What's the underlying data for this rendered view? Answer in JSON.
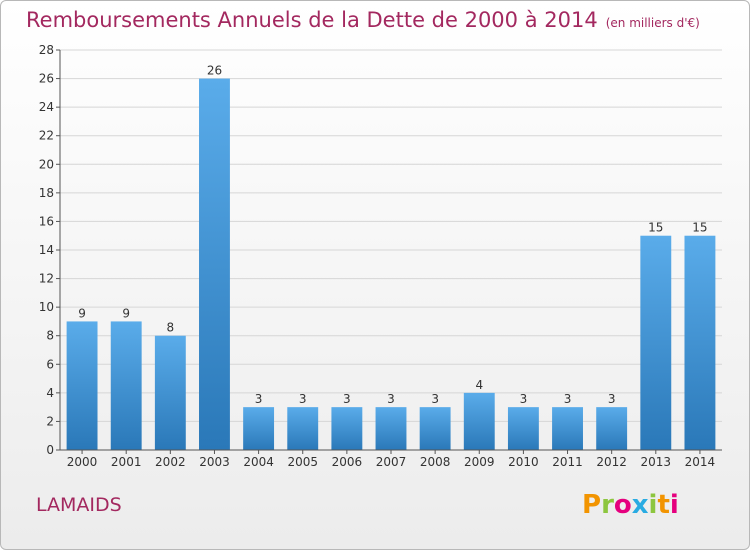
{
  "title": "Remboursements Annuels de la Dette de 2000 à 2014",
  "unit_note": "(en milliers d'€)",
  "place_name": "LAMAIDS",
  "logo_text": "Proxiti",
  "colors": {
    "title": "#a3285f",
    "bar_light": "#5aacea",
    "bar_dark": "#2a78b8",
    "grid": "#d6d6d6"
  },
  "chart_data": {
    "type": "bar",
    "categories": [
      "2000",
      "2001",
      "2002",
      "2003",
      "2004",
      "2005",
      "2006",
      "2007",
      "2008",
      "2009",
      "2010",
      "2011",
      "2012",
      "2013",
      "2014"
    ],
    "values": [
      9,
      9,
      8,
      26,
      3,
      3,
      3,
      3,
      3,
      4,
      3,
      3,
      3,
      15,
      15
    ],
    "ylim": [
      0,
      28
    ],
    "yticks": [
      0,
      2,
      4,
      6,
      8,
      10,
      12,
      14,
      16,
      18,
      20,
      22,
      24,
      26,
      28
    ],
    "grid": true,
    "data_labels": true
  }
}
